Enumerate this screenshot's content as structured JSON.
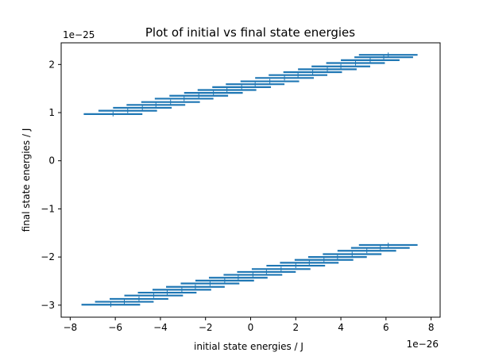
{
  "chart_data": {
    "type": "scatter",
    "title": "Plot of initial vs final state energies",
    "xlabel": "initial state energies / J",
    "ylabel": "final state energies / J",
    "x_offset_label": "1e−26",
    "y_offset_label": "1e−25",
    "xlim": [
      -8.4,
      8.4
    ],
    "ylim": [
      -3.25,
      2.45
    ],
    "xticks": [
      -8,
      -6,
      -4,
      -2,
      0,
      2,
      4,
      6,
      8
    ],
    "xtick_labels": [
      "−8",
      "−6",
      "−4",
      "−2",
      "0",
      "2",
      "4",
      "6",
      "8"
    ],
    "yticks": [
      -3,
      -2,
      -1,
      0,
      1,
      2
    ],
    "ytick_labels": [
      "−3",
      "−2",
      "−1",
      "0",
      "1",
      "2"
    ],
    "grid": false,
    "legend": "none",
    "color": "#1f77b4",
    "marker": "errorbar",
    "series": [
      {
        "points": [
          {
            "x": -6.1,
            "y": 0.97,
            "xerr": 1.3
          },
          {
            "x": -5.45,
            "y": 1.04,
            "xerr": 1.3
          },
          {
            "x": -4.8,
            "y": 1.1,
            "xerr": 1.3
          },
          {
            "x": -4.2,
            "y": 1.16,
            "xerr": 1.3
          },
          {
            "x": -3.55,
            "y": 1.22,
            "xerr": 1.3
          },
          {
            "x": -2.95,
            "y": 1.29,
            "xerr": 1.3
          },
          {
            "x": -2.3,
            "y": 1.35,
            "xerr": 1.3
          },
          {
            "x": -1.65,
            "y": 1.41,
            "xerr": 1.3
          },
          {
            "x": -1.05,
            "y": 1.47,
            "xerr": 1.3
          },
          {
            "x": -0.4,
            "y": 1.53,
            "xerr": 1.3
          },
          {
            "x": 0.2,
            "y": 1.59,
            "xerr": 1.3
          },
          {
            "x": 0.85,
            "y": 1.65,
            "xerr": 1.3
          },
          {
            "x": 1.5,
            "y": 1.72,
            "xerr": 1.3
          },
          {
            "x": 2.1,
            "y": 1.78,
            "xerr": 1.3
          },
          {
            "x": 2.75,
            "y": 1.84,
            "xerr": 1.3
          },
          {
            "x": 3.4,
            "y": 1.9,
            "xerr": 1.3
          },
          {
            "x": 4.0,
            "y": 1.96,
            "xerr": 1.3
          },
          {
            "x": 4.65,
            "y": 2.03,
            "xerr": 1.3
          },
          {
            "x": 5.3,
            "y": 2.09,
            "xerr": 1.3
          },
          {
            "x": 5.9,
            "y": 2.15,
            "xerr": 1.3
          },
          {
            "x": 6.1,
            "y": 2.2,
            "xerr": 1.3
          },
          {
            "x": -6.2,
            "y": -2.99,
            "xerr": 1.3
          },
          {
            "x": -5.6,
            "y": -2.93,
            "xerr": 1.3
          },
          {
            "x": -4.95,
            "y": -2.87,
            "xerr": 1.3
          },
          {
            "x": -4.3,
            "y": -2.8,
            "xerr": 1.3
          },
          {
            "x": -3.7,
            "y": -2.74,
            "xerr": 1.3
          },
          {
            "x": -3.05,
            "y": -2.68,
            "xerr": 1.3
          },
          {
            "x": -2.45,
            "y": -2.62,
            "xerr": 1.3
          },
          {
            "x": -1.8,
            "y": -2.55,
            "xerr": 1.3
          },
          {
            "x": -1.15,
            "y": -2.49,
            "xerr": 1.3
          },
          {
            "x": -0.55,
            "y": -2.43,
            "xerr": 1.3
          },
          {
            "x": 0.1,
            "y": -2.37,
            "xerr": 1.3
          },
          {
            "x": 0.7,
            "y": -2.31,
            "xerr": 1.3
          },
          {
            "x": 1.35,
            "y": -2.25,
            "xerr": 1.3
          },
          {
            "x": 2.0,
            "y": -2.18,
            "xerr": 1.3
          },
          {
            "x": 2.6,
            "y": -2.12,
            "xerr": 1.3
          },
          {
            "x": 3.25,
            "y": -2.06,
            "xerr": 1.3
          },
          {
            "x": 3.85,
            "y": -2.0,
            "xerr": 1.3
          },
          {
            "x": 4.5,
            "y": -1.94,
            "xerr": 1.3
          },
          {
            "x": 5.15,
            "y": -1.87,
            "xerr": 1.3
          },
          {
            "x": 5.75,
            "y": -1.81,
            "xerr": 1.3
          },
          {
            "x": 6.1,
            "y": -1.75,
            "xerr": 1.3
          }
        ]
      }
    ]
  }
}
